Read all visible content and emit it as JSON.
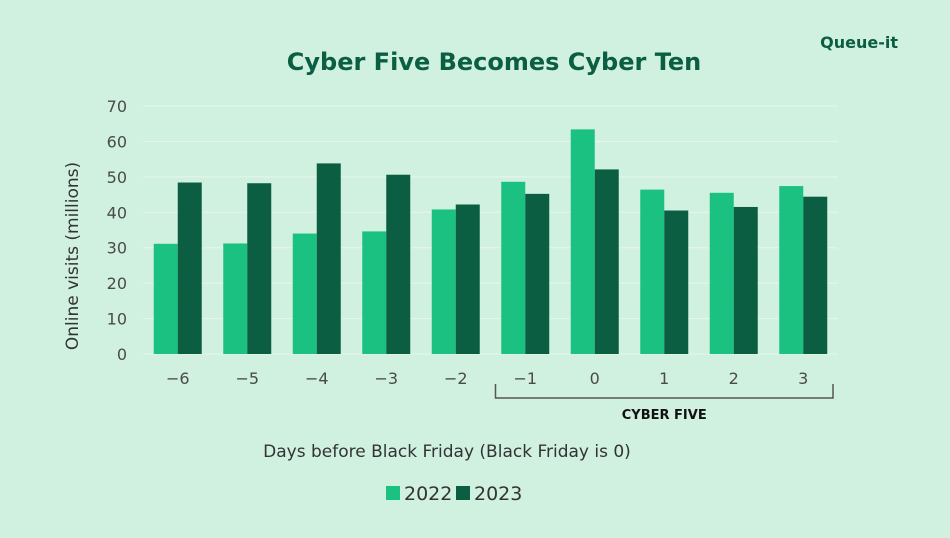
{
  "logo": {
    "text": "Queue-it"
  },
  "colors": {
    "background": "#d0f0e0",
    "series_2022": "#1ac181",
    "series_2023": "#0b5e42",
    "title": "#0b5e42",
    "gridline": "#e7f6ee",
    "bracket": "#555555"
  },
  "chart_data": {
    "type": "bar",
    "title": "Cyber Five Becomes Cyber Ten",
    "xlabel": "Days before Black Friday (Black Friday is 0)",
    "ylabel": "Online visits (millions)",
    "categories": [
      "−6",
      "−5",
      "−4",
      "−3",
      "−2",
      "−1",
      "0",
      "1",
      "2",
      "3"
    ],
    "series": [
      {
        "name": "2022",
        "values": [
          31.1,
          31.2,
          34.0,
          34.6,
          40.8,
          48.6,
          63.4,
          46.4,
          45.5,
          47.4
        ]
      },
      {
        "name": "2023",
        "values": [
          48.4,
          48.2,
          53.8,
          50.6,
          42.2,
          45.2,
          52.1,
          40.5,
          41.5,
          44.4
        ]
      }
    ],
    "ylim": [
      0,
      70
    ],
    "yticks": [
      0,
      10,
      20,
      30,
      40,
      50,
      60,
      70
    ],
    "grid": true,
    "legend_position": "bottom-center",
    "annotation": {
      "text": "CYBER FIVE",
      "start_category": "−1",
      "end_category": "3"
    }
  }
}
